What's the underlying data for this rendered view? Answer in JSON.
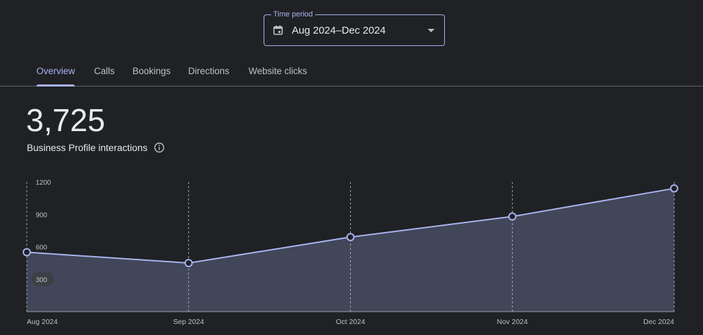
{
  "period": {
    "legend": "Time period",
    "value": "Aug 2024–Dec 2024"
  },
  "tabs": [
    {
      "label": "Overview",
      "active": true
    },
    {
      "label": "Calls",
      "active": false
    },
    {
      "label": "Bookings",
      "active": false
    },
    {
      "label": "Directions",
      "active": false
    },
    {
      "label": "Website clicks",
      "active": false
    }
  ],
  "summary": {
    "total": "3,725",
    "label": "Business Profile interactions"
  },
  "icons": {
    "period": "calendar-icon",
    "dropdown": "dropdown-caret-icon",
    "info": "info-icon"
  },
  "colors": {
    "accent": "#a8b4f0",
    "area_fill": "#414659",
    "background": "#202124"
  },
  "chart_data": {
    "type": "area",
    "categories": [
      "Aug 2024",
      "Sep 2024",
      "Oct 2024",
      "Nov 2024",
      "Dec 2024"
    ],
    "series": [
      {
        "values": [
          550,
          450,
          690,
          880,
          1140
        ]
      }
    ],
    "y_ticks": [
      1200,
      900,
      600,
      300
    ],
    "ylim": [
      0,
      1200
    ],
    "highlighted_tick": 300,
    "grid": "vertical-dashed"
  }
}
